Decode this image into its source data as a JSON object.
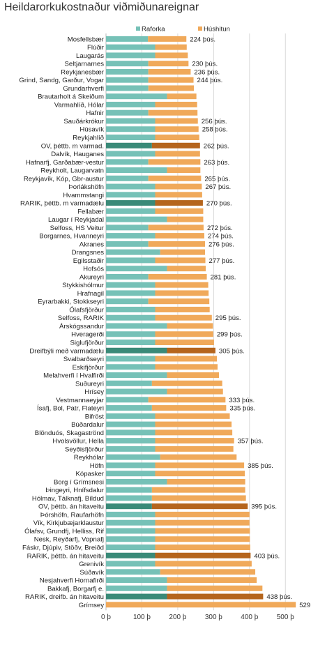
{
  "chart_data": {
    "type": "bar",
    "orientation": "horizontal",
    "stacked": true,
    "title": "Heildarorkukostnaður viðmiðunareignar",
    "xlabel": "",
    "ylabel": "",
    "xlim": [
      0,
      550
    ],
    "x_ticks": [
      0,
      100,
      200,
      300,
      400,
      500
    ],
    "x_tick_labels": [
      "0 þ",
      "100 þ",
      "200 þ",
      "300 þ",
      "400 þ",
      "500 þ"
    ],
    "grid": "vertical",
    "legend_position": "top-right",
    "colors": {
      "raforka": "#76c1b7",
      "husshitun": "#f0a95a",
      "raforka_highlight": "#3a8a78",
      "husshitun_highlight": "#b5651d"
    },
    "series": [
      {
        "name": "Raforka",
        "key": "raforka"
      },
      {
        "name": "Húshitun",
        "key": "husshitun"
      }
    ],
    "rows": [
      {
        "category": "Mosfellsbær",
        "raforka": 117,
        "husshitun": 107,
        "total_label": "224 þús.",
        "highlight": false
      },
      {
        "category": "Flúðir",
        "raforka": 137,
        "husshitun": 88,
        "total_label": "",
        "highlight": false
      },
      {
        "category": "Laugarás",
        "raforka": 137,
        "husshitun": 91,
        "total_label": "",
        "highlight": false
      },
      {
        "category": "Seltjarnarnes",
        "raforka": 118,
        "husshitun": 112,
        "total_label": "230 þús.",
        "highlight": false
      },
      {
        "category": "Reykjanesbær",
        "raforka": 118,
        "husshitun": 118,
        "total_label": "236 þús.",
        "highlight": false
      },
      {
        "category": "Grind, Sandg, Garður, Vogar",
        "raforka": 118,
        "husshitun": 126,
        "total_label": "244 þús.",
        "highlight": false
      },
      {
        "category": "Grundarhverfi",
        "raforka": 118,
        "husshitun": 127,
        "total_label": "",
        "highlight": false
      },
      {
        "category": "Brautarholt á Skeiðum",
        "raforka": 170,
        "husshitun": 82,
        "total_label": "",
        "highlight": false
      },
      {
        "category": "Varmahlíð, Hólar",
        "raforka": 137,
        "husshitun": 117,
        "total_label": "",
        "highlight": false
      },
      {
        "category": "Hafnir",
        "raforka": 118,
        "husshitun": 137,
        "total_label": "",
        "highlight": false
      },
      {
        "category": "Sauðárkrókur",
        "raforka": 137,
        "husshitun": 119,
        "total_label": "256 þús.",
        "highlight": false
      },
      {
        "category": "Húsavík",
        "raforka": 137,
        "husshitun": 121,
        "total_label": "258 þús.",
        "highlight": false
      },
      {
        "category": "Reykjahlíð",
        "raforka": 137,
        "husshitun": 123,
        "total_label": "",
        "highlight": false
      },
      {
        "category": "OV, þéttb. m varmad.",
        "raforka": 128,
        "husshitun": 134,
        "total_label": "262 þús.",
        "highlight": true
      },
      {
        "category": "Dalvík, Hauganes",
        "raforka": 137,
        "husshitun": 125,
        "total_label": "",
        "highlight": false
      },
      {
        "category": "Hafnarfj, Garðabær-vestur",
        "raforka": 118,
        "husshitun": 145,
        "total_label": "263 þús.",
        "highlight": false
      },
      {
        "category": "Reykholt, Laugarvatn",
        "raforka": 170,
        "husshitun": 93,
        "total_label": "",
        "highlight": false
      },
      {
        "category": "Reykjavík, Kóp, Gbr-austur",
        "raforka": 118,
        "husshitun": 147,
        "total_label": "265 þús.",
        "highlight": false
      },
      {
        "category": "Þorlákshöfn",
        "raforka": 137,
        "husshitun": 130,
        "total_label": "267 þús.",
        "highlight": false
      },
      {
        "category": "Hvammstangi",
        "raforka": 137,
        "husshitun": 131,
        "total_label": "",
        "highlight": false
      },
      {
        "category": "RARIK, þéttb. m varmadælu",
        "raforka": 137,
        "husshitun": 133,
        "total_label": "270 þús.",
        "highlight": true
      },
      {
        "category": "Fellabær",
        "raforka": 137,
        "husshitun": 134,
        "total_label": "",
        "highlight": false
      },
      {
        "category": "Laugar í Reykjadal",
        "raforka": 170,
        "husshitun": 101,
        "total_label": "",
        "highlight": false
      },
      {
        "category": "Selfoss, HS Veitur",
        "raforka": 118,
        "husshitun": 154,
        "total_label": "272 þús.",
        "highlight": false
      },
      {
        "category": "Borgarnes, Hvanneyri",
        "raforka": 137,
        "husshitun": 137,
        "total_label": "274 þús.",
        "highlight": false
      },
      {
        "category": "Akranes",
        "raforka": 118,
        "husshitun": 158,
        "total_label": "276 þús.",
        "highlight": false
      },
      {
        "category": "Drangsnes",
        "raforka": 151,
        "husshitun": 125,
        "total_label": "",
        "highlight": false
      },
      {
        "category": "Egilsstaðir",
        "raforka": 137,
        "husshitun": 140,
        "total_label": "277 þús.",
        "highlight": false
      },
      {
        "category": "Hofsós",
        "raforka": 170,
        "husshitun": 108,
        "total_label": "",
        "highlight": false
      },
      {
        "category": "Akureyri",
        "raforka": 118,
        "husshitun": 163,
        "total_label": "281 þús.",
        "highlight": false
      },
      {
        "category": "Stykkishólmur",
        "raforka": 137,
        "husshitun": 148,
        "total_label": "",
        "highlight": false
      },
      {
        "category": "Hrafnagil",
        "raforka": 137,
        "husshitun": 149,
        "total_label": "",
        "highlight": false
      },
      {
        "category": "Eyrarbakki, Stokkseyri",
        "raforka": 118,
        "husshitun": 170,
        "total_label": "",
        "highlight": false
      },
      {
        "category": "Ólafsfjörður",
        "raforka": 137,
        "husshitun": 152,
        "total_label": "",
        "highlight": false
      },
      {
        "category": "Selfoss, RARIK",
        "raforka": 137,
        "husshitun": 158,
        "total_label": "295 þús.",
        "highlight": false
      },
      {
        "category": "Árskógssandur",
        "raforka": 170,
        "husshitun": 128,
        "total_label": "",
        "highlight": false
      },
      {
        "category": "Hveragerði",
        "raforka": 137,
        "husshitun": 162,
        "total_label": "299 þús.",
        "highlight": false
      },
      {
        "category": "Siglufjörður",
        "raforka": 137,
        "husshitun": 164,
        "total_label": "",
        "highlight": false
      },
      {
        "category": "Dreifbýli með varmadælu",
        "raforka": 170,
        "husshitun": 135,
        "total_label": "305 þús.",
        "highlight": true
      },
      {
        "category": "Svalbarðseyri",
        "raforka": 137,
        "husshitun": 172,
        "total_label": "",
        "highlight": false
      },
      {
        "category": "Eskifjörður",
        "raforka": 137,
        "husshitun": 174,
        "total_label": "",
        "highlight": false
      },
      {
        "category": "Melahverfi í Hvalfirði",
        "raforka": 170,
        "husshitun": 145,
        "total_label": "",
        "highlight": false
      },
      {
        "category": "Suðureyri",
        "raforka": 128,
        "husshitun": 196,
        "total_label": "",
        "highlight": false
      },
      {
        "category": "Hrísey",
        "raforka": 170,
        "husshitun": 156,
        "total_label": "",
        "highlight": false
      },
      {
        "category": "Vestmannaeyjar",
        "raforka": 118,
        "husshitun": 215,
        "total_label": "333 þús.",
        "highlight": false
      },
      {
        "category": "Ísafj, Bol, Patr, Flateyri",
        "raforka": 128,
        "husshitun": 207,
        "total_label": "335 þús.",
        "highlight": false
      },
      {
        "category": "Bifröst",
        "raforka": 137,
        "husshitun": 208,
        "total_label": "",
        "highlight": false
      },
      {
        "category": "Búðardalur",
        "raforka": 137,
        "husshitun": 213,
        "total_label": "",
        "highlight": false
      },
      {
        "category": "Blönduós, Skagaströnd",
        "raforka": 137,
        "husshitun": 215,
        "total_label": "",
        "highlight": false
      },
      {
        "category": "Hvolsvöllur, Hella",
        "raforka": 137,
        "husshitun": 220,
        "total_label": "357 þús.",
        "highlight": false
      },
      {
        "category": "Seyðisfjörður",
        "raforka": 137,
        "husshitun": 218,
        "total_label": "",
        "highlight": false
      },
      {
        "category": "Reykhólar",
        "raforka": 151,
        "husshitun": 213,
        "total_label": "",
        "highlight": false
      },
      {
        "category": "Höfn",
        "raforka": 137,
        "husshitun": 248,
        "total_label": "385 þús.",
        "highlight": false
      },
      {
        "category": "Kópasker",
        "raforka": 137,
        "husshitun": 250,
        "total_label": "",
        "highlight": false
      },
      {
        "category": "Borg í Grímsnesi",
        "raforka": 170,
        "husshitun": 218,
        "total_label": "",
        "highlight": false
      },
      {
        "category": "Þingeyri, Hnífsdalur",
        "raforka": 128,
        "husshitun": 260,
        "total_label": "",
        "highlight": false
      },
      {
        "category": "Hólmav, Tálknafj, Bíldud",
        "raforka": 128,
        "husshitun": 262,
        "total_label": "",
        "highlight": false
      },
      {
        "category": "OV, þéttb. án hitaveitu",
        "raforka": 128,
        "husshitun": 267,
        "total_label": "395 þús.",
        "highlight": true
      },
      {
        "category": "Þórshöfn, Raufarhöfn",
        "raforka": 137,
        "husshitun": 263,
        "total_label": "",
        "highlight": false
      },
      {
        "category": "Vík, Kirkjubæjarklaustur",
        "raforka": 137,
        "husshitun": 263,
        "total_label": "",
        "highlight": false
      },
      {
        "category": "Ólafsv, Grundfj, Helliss, Rif",
        "raforka": 137,
        "husshitun": 264,
        "total_label": "",
        "highlight": false
      },
      {
        "category": "Nesk, Reyðarfj, Vopnafj",
        "raforka": 137,
        "husshitun": 264,
        "total_label": "",
        "highlight": false
      },
      {
        "category": "Fáskr, Djúpiv, Stöðv, Breiðd",
        "raforka": 137,
        "husshitun": 265,
        "total_label": "",
        "highlight": false
      },
      {
        "category": "RARIK, þéttb. án hitaveitu",
        "raforka": 137,
        "husshitun": 266,
        "total_label": "403 þús.",
        "highlight": true
      },
      {
        "category": "Grenivík",
        "raforka": 137,
        "husshitun": 269,
        "total_label": "",
        "highlight": false
      },
      {
        "category": "Súðavík",
        "raforka": 151,
        "husshitun": 265,
        "total_label": "",
        "highlight": false
      },
      {
        "category": "Nesjahverfi Hornafirði",
        "raforka": 170,
        "husshitun": 250,
        "total_label": "",
        "highlight": false
      },
      {
        "category": "Bakkafj, Borgarfj e.",
        "raforka": 170,
        "husshitun": 266,
        "total_label": "",
        "highlight": false
      },
      {
        "category": "RARIK, dreifb. án hitaveitu",
        "raforka": 170,
        "husshitun": 268,
        "total_label": "438 þús.",
        "highlight": true
      },
      {
        "category": "Grímsey",
        "raforka": 0,
        "husshitun": 529,
        "total_label": "529 þús.",
        "highlight": false
      }
    ]
  }
}
